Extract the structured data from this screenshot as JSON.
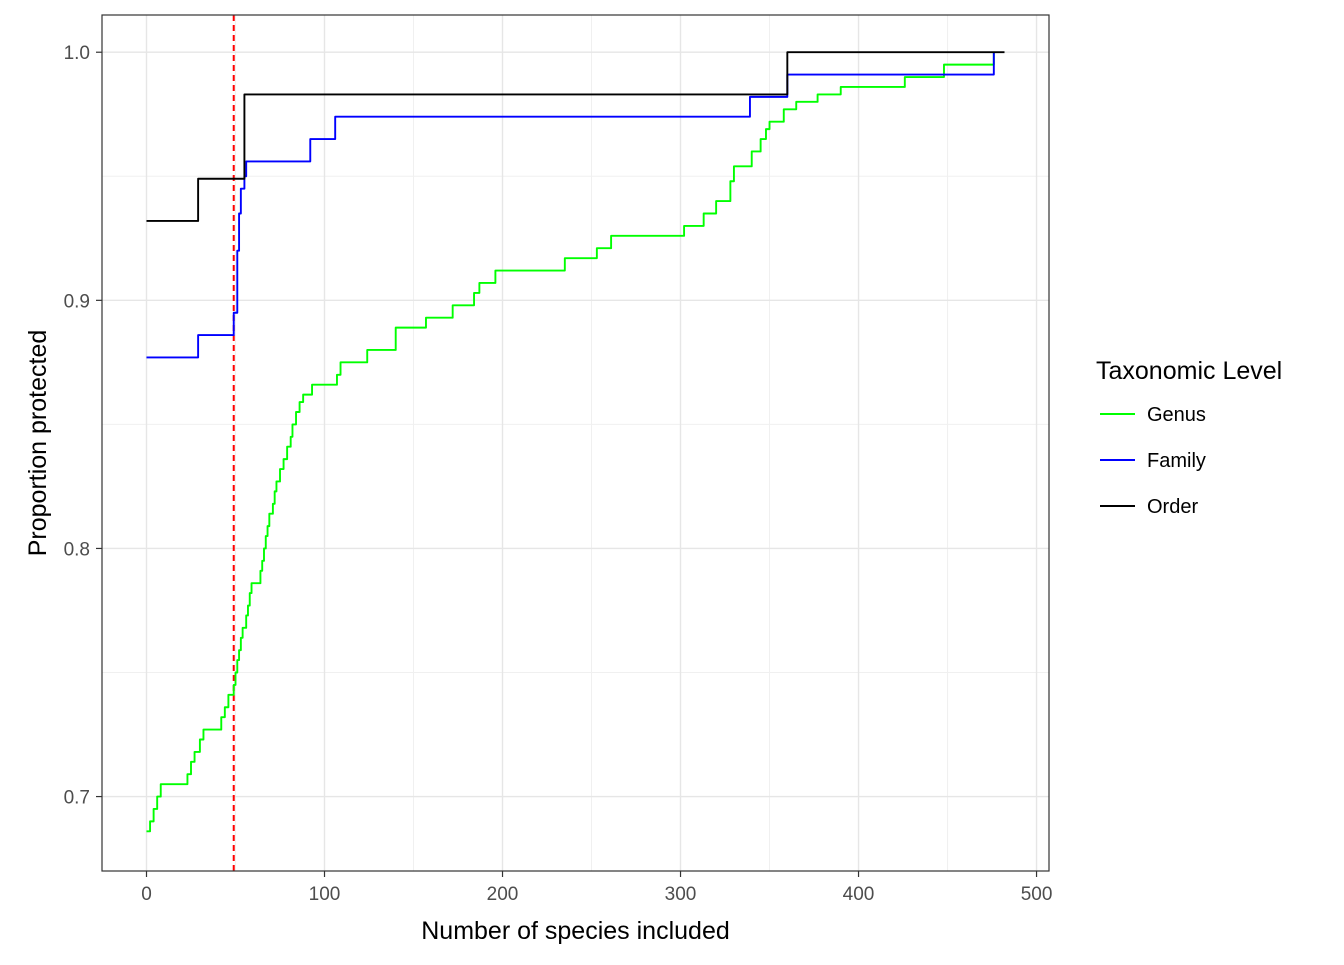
{
  "chart_data": {
    "type": "line",
    "title": "",
    "xlabel": "Number of species included",
    "ylabel": "Proportion protected",
    "xlim": [
      -25,
      507
    ],
    "ylim": [
      0.67,
      1.015
    ],
    "x_ticks": [
      0,
      100,
      200,
      300,
      400,
      500
    ],
    "x_tick_labels": [
      "0",
      "100",
      "200",
      "300",
      "400",
      "500"
    ],
    "y_ticks": [
      0.7,
      0.8,
      0.9,
      1.0
    ],
    "y_tick_labels": [
      "0.7",
      "0.8",
      "0.9",
      "1.0"
    ],
    "grid": true,
    "legend": {
      "title": "Taxonomic Level",
      "placement": "right"
    },
    "reference_line": {
      "axis": "x",
      "value": 49,
      "color": "#ff0000",
      "style": "dashed"
    },
    "series": [
      {
        "name": "Genus",
        "color": "#00ff00",
        "step": true,
        "points": [
          [
            0,
            0.686
          ],
          [
            1,
            0.686
          ],
          [
            2,
            0.69
          ],
          [
            4,
            0.695
          ],
          [
            6,
            0.7
          ],
          [
            8,
            0.705
          ],
          [
            21,
            0.705
          ],
          [
            23,
            0.709
          ],
          [
            25,
            0.714
          ],
          [
            27,
            0.718
          ],
          [
            30,
            0.723
          ],
          [
            32,
            0.727
          ],
          [
            40,
            0.727
          ],
          [
            42,
            0.732
          ],
          [
            44,
            0.736
          ],
          [
            46,
            0.741
          ],
          [
            49,
            0.745
          ],
          [
            50,
            0.75
          ],
          [
            51,
            0.755
          ],
          [
            52,
            0.759
          ],
          [
            53,
            0.764
          ],
          [
            54,
            0.768
          ],
          [
            56,
            0.773
          ],
          [
            57,
            0.777
          ],
          [
            58,
            0.782
          ],
          [
            59,
            0.786
          ],
          [
            63,
            0.786
          ],
          [
            64,
            0.791
          ],
          [
            65,
            0.795
          ],
          [
            66,
            0.8
          ],
          [
            67,
            0.805
          ],
          [
            68,
            0.809
          ],
          [
            69,
            0.814
          ],
          [
            71,
            0.818
          ],
          [
            72,
            0.823
          ],
          [
            73,
            0.827
          ],
          [
            75,
            0.832
          ],
          [
            77,
            0.836
          ],
          [
            79,
            0.841
          ],
          [
            81,
            0.845
          ],
          [
            82,
            0.85
          ],
          [
            84,
            0.855
          ],
          [
            86,
            0.859
          ],
          [
            88,
            0.862
          ],
          [
            92,
            0.862
          ],
          [
            93,
            0.866
          ],
          [
            105,
            0.866
          ],
          [
            107,
            0.87
          ],
          [
            109,
            0.875
          ],
          [
            122,
            0.875
          ],
          [
            124,
            0.88
          ],
          [
            138,
            0.88
          ],
          [
            140,
            0.889
          ],
          [
            155,
            0.889
          ],
          [
            157,
            0.893
          ],
          [
            170,
            0.893
          ],
          [
            172,
            0.898
          ],
          [
            182,
            0.898
          ],
          [
            184,
            0.903
          ],
          [
            187,
            0.907
          ],
          [
            194,
            0.907
          ],
          [
            196,
            0.912
          ],
          [
            233,
            0.912
          ],
          [
            235,
            0.917
          ],
          [
            251,
            0.917
          ],
          [
            253,
            0.921
          ],
          [
            259,
            0.921
          ],
          [
            261,
            0.926
          ],
          [
            300,
            0.926
          ],
          [
            302,
            0.93
          ],
          [
            311,
            0.93
          ],
          [
            313,
            0.935
          ],
          [
            318,
            0.935
          ],
          [
            320,
            0.94
          ],
          [
            326,
            0.94
          ],
          [
            328,
            0.948
          ],
          [
            330,
            0.954
          ],
          [
            338,
            0.954
          ],
          [
            340,
            0.96
          ],
          [
            344,
            0.96
          ],
          [
            345,
            0.965
          ],
          [
            348,
            0.969
          ],
          [
            350,
            0.972
          ],
          [
            356,
            0.972
          ],
          [
            358,
            0.977
          ],
          [
            362,
            0.977
          ],
          [
            365,
            0.98
          ],
          [
            375,
            0.98
          ],
          [
            377,
            0.983
          ],
          [
            388,
            0.983
          ],
          [
            390,
            0.986
          ],
          [
            424,
            0.986
          ],
          [
            426,
            0.99
          ],
          [
            446,
            0.99
          ],
          [
            448,
            0.995
          ],
          [
            474,
            0.995
          ],
          [
            476,
            1.0
          ]
        ]
      },
      {
        "name": "Family",
        "color": "#0000ff",
        "step": true,
        "points": [
          [
            0,
            0.877
          ],
          [
            28,
            0.877
          ],
          [
            29,
            0.886
          ],
          [
            48,
            0.886
          ],
          [
            49,
            0.895
          ],
          [
            50,
            0.895
          ],
          [
            51,
            0.92
          ],
          [
            52,
            0.935
          ],
          [
            53,
            0.945
          ],
          [
            55,
            0.95
          ],
          [
            56,
            0.956
          ],
          [
            91,
            0.956
          ],
          [
            92,
            0.965
          ],
          [
            105,
            0.965
          ],
          [
            106,
            0.974
          ],
          [
            338,
            0.974
          ],
          [
            339,
            0.982
          ],
          [
            359,
            0.982
          ],
          [
            360,
            0.991
          ],
          [
            474,
            0.991
          ],
          [
            476,
            1.0
          ]
        ]
      },
      {
        "name": "Order",
        "color": "#000000",
        "step": true,
        "points": [
          [
            0,
            0.932
          ],
          [
            28,
            0.932
          ],
          [
            29,
            0.949
          ],
          [
            54,
            0.949
          ],
          [
            55,
            0.983
          ],
          [
            359,
            0.983
          ],
          [
            360,
            1.0
          ],
          [
            482,
            1.0
          ]
        ]
      }
    ]
  }
}
